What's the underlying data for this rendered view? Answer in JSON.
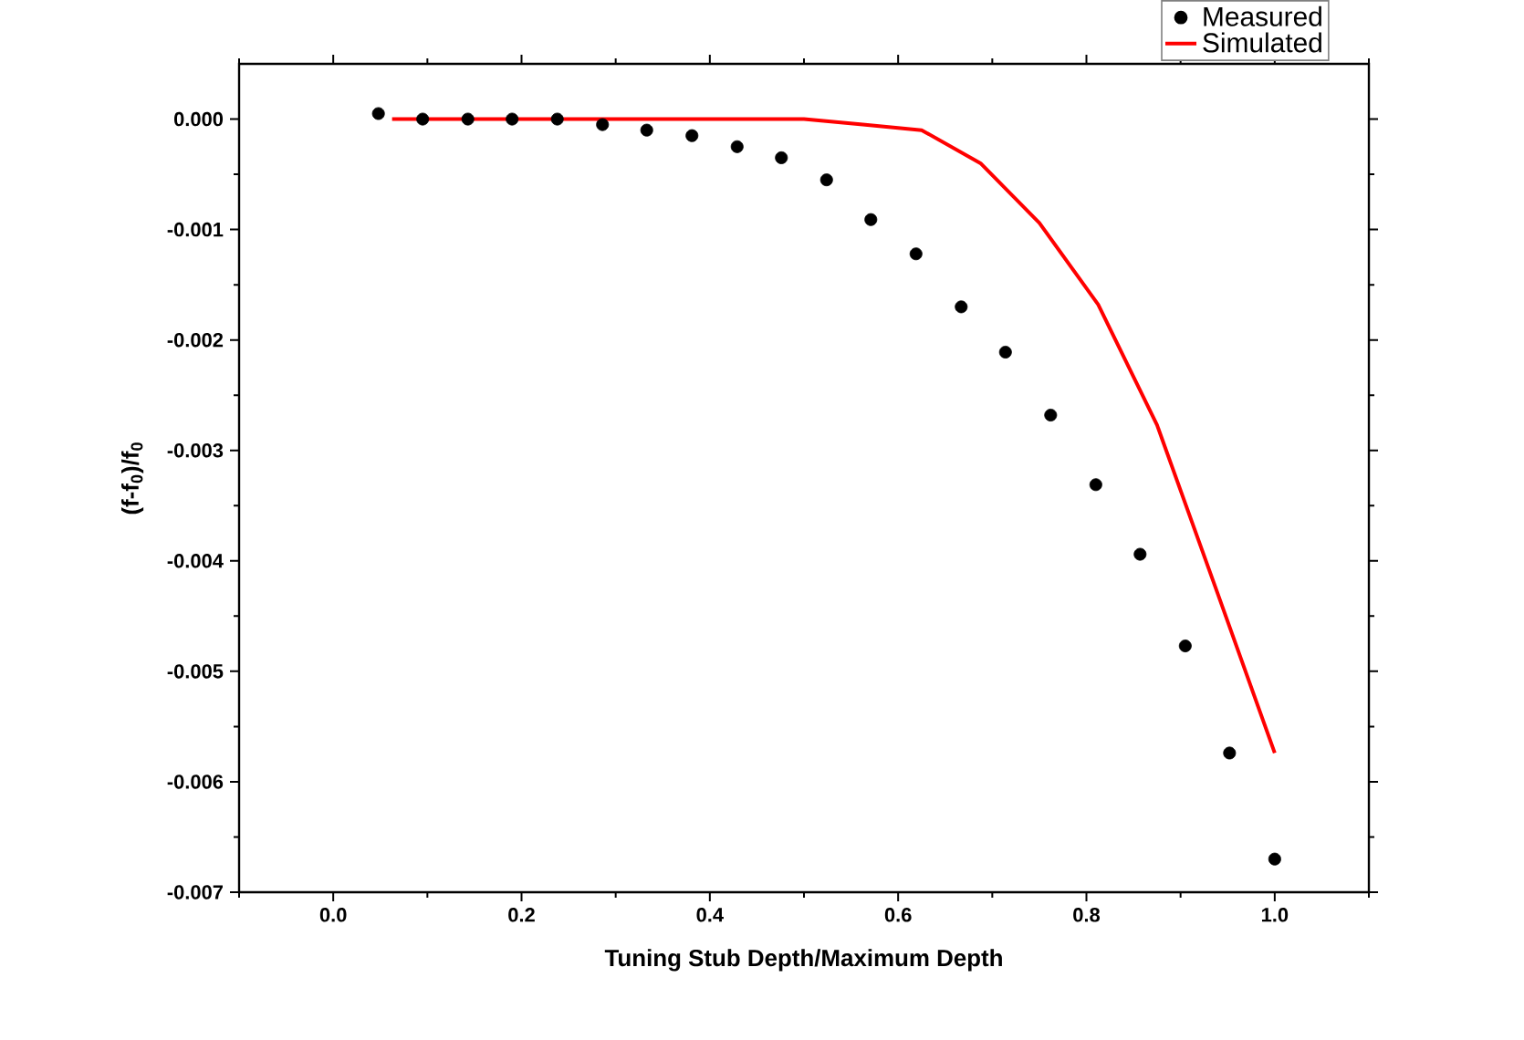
{
  "chart_data": {
    "type": "scatter",
    "xlabel": "Tuning Stub Depth/Maximum Depth",
    "ylabel": "(f-f$_{0}$)/f$_{0}$",
    "xlim": [
      -0.1,
      1.1
    ],
    "ylim": [
      -0.007,
      0.0005
    ],
    "xticks": [
      {
        "value": -0.1,
        "label": null
      },
      {
        "value": 0,
        "label": "0.0"
      },
      {
        "value": 0.1,
        "label": null
      },
      0.2,
      {
        "value": 0.3,
        "label": null
      },
      0.4,
      {
        "value": 0.5,
        "label": null
      },
      0.6,
      {
        "value": 0.7,
        "label": null
      },
      0.8,
      {
        "value": 0.9,
        "label": null
      },
      {
        "value": 1,
        "label": "1.0"
      },
      {
        "value": 1.1,
        "label": null
      }
    ],
    "yticks": [
      -0.007,
      {
        "value": -0.0065,
        "label": null
      },
      -0.006,
      {
        "value": -0.0055,
        "label": null
      },
      -0.005,
      {
        "value": -0.0045,
        "label": null
      },
      -0.004,
      {
        "value": -0.0035,
        "label": null
      },
      -0.003,
      {
        "value": -0.0025,
        "label": null
      },
      -0.002,
      {
        "value": -0.0015,
        "label": null
      },
      -0.001,
      {
        "value": -0.0005,
        "label": null
      },
      {
        "value": 0,
        "label": "0.000"
      }
    ],
    "legend": "top right",
    "grid": false,
    "series": [
      {
        "name": "Measured",
        "type": "scatter",
        "marker": "circle",
        "color": "#000000",
        "x": [
          0.048,
          0.095,
          0.143,
          0.19,
          0.238,
          0.286,
          0.333,
          0.381,
          0.429,
          0.476,
          0.524,
          0.571,
          0.619,
          0.667,
          0.714,
          0.762,
          0.81,
          0.857,
          0.905,
          0.952,
          1.0
        ],
        "values": [
          5e-05,
          0.0,
          0.0,
          0.0,
          0.0,
          -5e-05,
          -0.0001,
          -0.00015,
          -0.00025,
          -0.00035,
          -0.00055,
          -0.00091,
          -0.00122,
          -0.0017,
          -0.00211,
          -0.00268,
          -0.00331,
          -0.00394,
          -0.00477,
          -0.00574,
          -0.0067
        ]
      },
      {
        "name": "Simulated",
        "type": "line",
        "line_style": "solid",
        "color": "#ff0000",
        "x": [
          0.0625,
          0.125,
          0.1875,
          0.25,
          0.3125,
          0.375,
          0.4375,
          0.5,
          0.5625,
          0.625,
          0.6875,
          0.75,
          0.8125,
          0.875,
          0.9375,
          1.0
        ],
        "values": [
          0.0,
          0.0,
          0.0,
          0.0,
          0.0,
          0.0,
          0.0,
          0.0,
          -5e-05,
          -0.0001,
          -0.0004,
          -0.00094,
          -0.00168,
          -0.00277,
          -0.00425,
          -0.00574
        ]
      }
    ]
  }
}
